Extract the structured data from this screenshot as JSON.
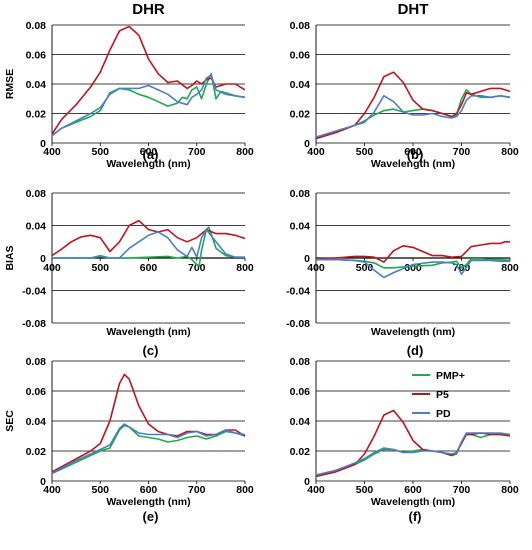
{
  "colors": {
    "PMP+": "#1faa4a",
    "P5": "#c0141c",
    "PD": "#4a7fc8"
  },
  "chart_data": [
    {
      "type": "line",
      "title": "DHR",
      "ylabel": "RMSE",
      "xlabel": "Wavelength (nm)",
      "panel_label": "(a)",
      "xlim": [
        400,
        800
      ],
      "ylim": [
        0,
        0.08
      ],
      "xticks": [
        "400",
        "500",
        "600",
        "700",
        "800"
      ],
      "yticks": [
        "0",
        "0.02",
        "0.04",
        "0.06",
        "0.08"
      ],
      "grid": true,
      "series": [
        {
          "name": "PMP+",
          "x": [
            400,
            420,
            450,
            480,
            500,
            520,
            540,
            560,
            580,
            600,
            620,
            640,
            660,
            670,
            680,
            690,
            700,
            710,
            720,
            730,
            740,
            750,
            760,
            780,
            800
          ],
          "y": [
            0.005,
            0.01,
            0.014,
            0.018,
            0.022,
            0.034,
            0.037,
            0.036,
            0.033,
            0.031,
            0.028,
            0.025,
            0.027,
            0.031,
            0.03,
            0.036,
            0.038,
            0.03,
            0.04,
            0.047,
            0.03,
            0.035,
            0.034,
            0.032,
            0.031
          ]
        },
        {
          "name": "P5",
          "x": [
            400,
            420,
            450,
            480,
            500,
            520,
            540,
            560,
            580,
            600,
            620,
            640,
            660,
            680,
            690,
            700,
            710,
            720,
            730,
            740,
            760,
            780,
            800
          ],
          "y": [
            0.006,
            0.016,
            0.026,
            0.038,
            0.048,
            0.063,
            0.076,
            0.079,
            0.073,
            0.057,
            0.047,
            0.041,
            0.042,
            0.037,
            0.039,
            0.042,
            0.04,
            0.043,
            0.044,
            0.038,
            0.04,
            0.04,
            0.036
          ]
        },
        {
          "name": "PD",
          "x": [
            400,
            420,
            450,
            480,
            500,
            520,
            540,
            560,
            580,
            600,
            620,
            640,
            660,
            680,
            690,
            700,
            710,
            720,
            730,
            740,
            760,
            780,
            800
          ],
          "y": [
            0.005,
            0.01,
            0.015,
            0.02,
            0.024,
            0.033,
            0.037,
            0.037,
            0.037,
            0.039,
            0.036,
            0.033,
            0.028,
            0.026,
            0.031,
            0.033,
            0.036,
            0.044,
            0.046,
            0.036,
            0.033,
            0.032,
            0.031
          ]
        }
      ]
    },
    {
      "type": "line",
      "title": "DHT",
      "ylabel": "",
      "xlabel": "Wavelength (nm)",
      "panel_label": "(b)",
      "xlim": [
        400,
        800
      ],
      "ylim": [
        0,
        0.08
      ],
      "xticks": [
        "400",
        "500",
        "600",
        "700",
        "800"
      ],
      "yticks": [
        "0",
        "0.02",
        "0.04",
        "0.06",
        "0.08"
      ],
      "grid": true,
      "series": [
        {
          "name": "PMP+",
          "x": [
            400,
            440,
            480,
            500,
            520,
            540,
            560,
            580,
            600,
            620,
            640,
            660,
            680,
            690,
            700,
            710,
            720,
            740,
            760,
            780,
            800
          ],
          "y": [
            0.004,
            0.007,
            0.012,
            0.015,
            0.019,
            0.022,
            0.023,
            0.021,
            0.022,
            0.023,
            0.022,
            0.02,
            0.018,
            0.019,
            0.03,
            0.036,
            0.033,
            0.031,
            0.031,
            0.032,
            0.031
          ]
        },
        {
          "name": "P5",
          "x": [
            400,
            440,
            480,
            500,
            520,
            540,
            560,
            580,
            600,
            620,
            640,
            660,
            680,
            690,
            700,
            710,
            720,
            740,
            760,
            780,
            800
          ],
          "y": [
            0.003,
            0.007,
            0.012,
            0.02,
            0.031,
            0.045,
            0.048,
            0.041,
            0.029,
            0.023,
            0.022,
            0.02,
            0.018,
            0.02,
            0.026,
            0.034,
            0.033,
            0.035,
            0.037,
            0.037,
            0.035
          ]
        },
        {
          "name": "PD",
          "x": [
            400,
            440,
            480,
            500,
            520,
            540,
            560,
            580,
            600,
            620,
            640,
            660,
            680,
            690,
            700,
            710,
            720,
            740,
            760,
            780,
            800
          ],
          "y": [
            0.004,
            0.008,
            0.012,
            0.014,
            0.021,
            0.032,
            0.028,
            0.021,
            0.019,
            0.019,
            0.02,
            0.018,
            0.017,
            0.018,
            0.022,
            0.029,
            0.032,
            0.032,
            0.031,
            0.032,
            0.031
          ]
        }
      ]
    },
    {
      "type": "line",
      "title": "",
      "ylabel": "BIAS",
      "xlabel": "Wavelength (nm)",
      "panel_label": "(c)",
      "xlim": [
        400,
        800
      ],
      "ylim": [
        -0.08,
        0.08
      ],
      "xticks": [
        "400",
        "500",
        "600",
        "700",
        "800"
      ],
      "yticks": [
        "-0.08",
        "-0.04",
        "0",
        "0.04",
        "0.08"
      ],
      "grid": true,
      "series": [
        {
          "name": "PMP+",
          "x": [
            400,
            440,
            480,
            500,
            520,
            560,
            600,
            640,
            660,
            680,
            690,
            700,
            705,
            710,
            720,
            725,
            730,
            740,
            760,
            780,
            800
          ],
          "y": [
            0,
            0,
            0,
            0.002,
            0,
            0,
            0.001,
            0.002,
            0,
            0.002,
            -0.002,
            -0.008,
            -0.01,
            0.01,
            0.035,
            0.038,
            0.03,
            0.012,
            0.003,
            0.001,
            0.001
          ]
        },
        {
          "name": "P5",
          "x": [
            400,
            420,
            440,
            460,
            480,
            500,
            520,
            540,
            560,
            580,
            600,
            620,
            640,
            660,
            680,
            700,
            720,
            740,
            760,
            780,
            800
          ],
          "y": [
            0.003,
            0.011,
            0.02,
            0.026,
            0.028,
            0.025,
            0.008,
            0.02,
            0.04,
            0.046,
            0.035,
            0.032,
            0.035,
            0.025,
            0.02,
            0.025,
            0.035,
            0.03,
            0.03,
            0.028,
            0.024
          ]
        },
        {
          "name": "PD",
          "x": [
            400,
            440,
            480,
            500,
            520,
            540,
            560,
            580,
            600,
            620,
            640,
            660,
            680,
            690,
            700,
            710,
            720,
            740,
            760,
            780,
            800
          ],
          "y": [
            0,
            0,
            0,
            0.003,
            0,
            0,
            0.012,
            0.02,
            0.028,
            0.032,
            0.025,
            0.01,
            0.002,
            0.013,
            0.001,
            0.025,
            0.035,
            0.02,
            0.005,
            0.001,
            0.001
          ]
        }
      ]
    },
    {
      "type": "line",
      "title": "",
      "ylabel": "",
      "xlabel": "Wavelength (nm)",
      "panel_label": "(d)",
      "xlim": [
        400,
        800
      ],
      "ylim": [
        -0.08,
        0.08
      ],
      "xticks": [
        "400",
        "500",
        "600",
        "700",
        "800"
      ],
      "yticks": [
        "-0.08",
        "-0.04",
        "0",
        "0.04",
        "0.08"
      ],
      "grid": true,
      "series": [
        {
          "name": "PMP+",
          "x": [
            400,
            440,
            480,
            500,
            520,
            540,
            560,
            600,
            640,
            660,
            680,
            690,
            700,
            710,
            720,
            740,
            760,
            780,
            800
          ],
          "y": [
            -0.002,
            -0.002,
            -0.003,
            -0.004,
            -0.006,
            -0.012,
            -0.012,
            -0.01,
            -0.009,
            -0.006,
            -0.005,
            -0.004,
            -0.012,
            -0.008,
            -0.001,
            -0.001,
            -0.002,
            -0.002,
            -0.003
          ]
        },
        {
          "name": "P5",
          "x": [
            400,
            440,
            480,
            500,
            520,
            540,
            560,
            580,
            600,
            620,
            640,
            660,
            680,
            700,
            720,
            740,
            760,
            780,
            790,
            800
          ],
          "y": [
            -0.001,
            0,
            0.002,
            0.002,
            0.001,
            -0.005,
            0.009,
            0.015,
            0.013,
            0.008,
            0.003,
            0.003,
            0.001,
            0.002,
            0.014,
            0.016,
            0.018,
            0.018,
            0.02,
            0.02
          ]
        },
        {
          "name": "PD",
          "x": [
            400,
            440,
            480,
            500,
            520,
            540,
            560,
            600,
            640,
            660,
            680,
            690,
            700,
            720,
            740,
            760,
            780,
            800
          ],
          "y": [
            -0.002,
            -0.002,
            -0.003,
            -0.005,
            -0.015,
            -0.024,
            -0.018,
            -0.008,
            -0.005,
            -0.005,
            -0.006,
            -0.008,
            -0.02,
            -0.003,
            -0.003,
            -0.003,
            -0.004,
            -0.004
          ]
        }
      ]
    },
    {
      "type": "line",
      "title": "",
      "ylabel": "SEC",
      "xlabel": "Wavelength (nm)",
      "panel_label": "(e)",
      "xlim": [
        400,
        800
      ],
      "ylim": [
        0,
        0.08
      ],
      "xticks": [
        "400",
        "500",
        "600",
        "700",
        "800"
      ],
      "yticks": [
        "0",
        "0.02",
        "0.04",
        "0.06",
        "0.08"
      ],
      "grid": true,
      "series": [
        {
          "name": "PMP+",
          "x": [
            400,
            440,
            480,
            500,
            520,
            540,
            550,
            560,
            580,
            600,
            620,
            640,
            660,
            680,
            700,
            720,
            740,
            760,
            780,
            800
          ],
          "y": [
            0.005,
            0.011,
            0.017,
            0.02,
            0.022,
            0.034,
            0.037,
            0.036,
            0.03,
            0.029,
            0.028,
            0.026,
            0.027,
            0.029,
            0.03,
            0.028,
            0.03,
            0.033,
            0.032,
            0.03
          ]
        },
        {
          "name": "P5",
          "x": [
            400,
            440,
            480,
            500,
            520,
            540,
            550,
            560,
            580,
            600,
            620,
            640,
            660,
            680,
            700,
            720,
            740,
            760,
            780,
            800
          ],
          "y": [
            0.006,
            0.013,
            0.02,
            0.025,
            0.04,
            0.065,
            0.071,
            0.068,
            0.05,
            0.038,
            0.033,
            0.031,
            0.03,
            0.033,
            0.033,
            0.031,
            0.031,
            0.034,
            0.034,
            0.03
          ]
        },
        {
          "name": "PD",
          "x": [
            400,
            440,
            480,
            500,
            520,
            540,
            550,
            560,
            580,
            600,
            620,
            640,
            660,
            680,
            700,
            720,
            740,
            760,
            780,
            800
          ],
          "y": [
            0.005,
            0.012,
            0.018,
            0.021,
            0.024,
            0.035,
            0.038,
            0.036,
            0.032,
            0.031,
            0.031,
            0.031,
            0.029,
            0.032,
            0.033,
            0.03,
            0.031,
            0.034,
            0.032,
            0.031
          ]
        }
      ]
    },
    {
      "type": "line",
      "title": "",
      "ylabel": "",
      "xlabel": "Wavelength  (nm)",
      "panel_label": "(f)",
      "xlim": [
        400,
        800
      ],
      "ylim": [
        0,
        0.08
      ],
      "xticks": [
        "400",
        "500",
        "600",
        "700",
        "800"
      ],
      "yticks": [
        "0",
        "0.02",
        "0.04",
        "0.06",
        "0.08"
      ],
      "grid": true,
      "legend": {
        "position": "top-right",
        "entries": [
          "PMP+",
          "P5",
          "PD"
        ]
      },
      "series": [
        {
          "name": "PMP+",
          "x": [
            400,
            440,
            480,
            500,
            520,
            540,
            560,
            580,
            600,
            620,
            640,
            660,
            680,
            690,
            700,
            710,
            720,
            740,
            760,
            780,
            800
          ],
          "y": [
            0.004,
            0.007,
            0.011,
            0.014,
            0.018,
            0.021,
            0.021,
            0.019,
            0.02,
            0.021,
            0.02,
            0.019,
            0.017,
            0.018,
            0.026,
            0.031,
            0.031,
            0.029,
            0.031,
            0.031,
            0.031
          ]
        },
        {
          "name": "P5",
          "x": [
            400,
            440,
            480,
            500,
            520,
            540,
            560,
            580,
            600,
            620,
            640,
            660,
            680,
            690,
            700,
            710,
            720,
            740,
            760,
            780,
            800
          ],
          "y": [
            0.003,
            0.006,
            0.011,
            0.018,
            0.03,
            0.044,
            0.047,
            0.039,
            0.027,
            0.021,
            0.02,
            0.019,
            0.017,
            0.019,
            0.025,
            0.031,
            0.031,
            0.032,
            0.031,
            0.031,
            0.03
          ]
        },
        {
          "name": "PD",
          "x": [
            400,
            440,
            480,
            500,
            520,
            540,
            560,
            580,
            600,
            620,
            640,
            660,
            680,
            690,
            700,
            710,
            720,
            740,
            760,
            780,
            800
          ],
          "y": [
            0.004,
            0.007,
            0.012,
            0.015,
            0.019,
            0.022,
            0.021,
            0.019,
            0.019,
            0.02,
            0.02,
            0.019,
            0.018,
            0.019,
            0.026,
            0.032,
            0.032,
            0.032,
            0.032,
            0.032,
            0.031
          ]
        }
      ]
    }
  ]
}
